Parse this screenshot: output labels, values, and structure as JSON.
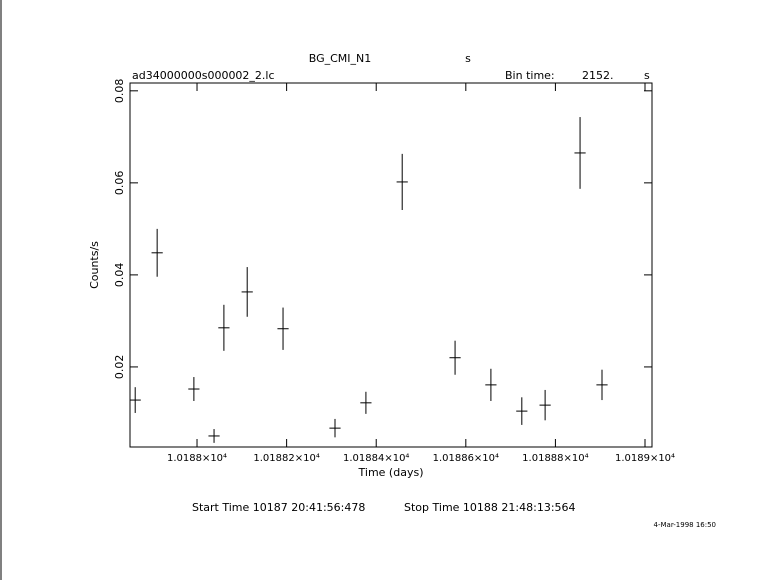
{
  "chart_data": {
    "type": "errorbar",
    "title": "BG_CMI_N1",
    "title_unit": "s",
    "subtitle": "ad34000000s000002_2.lc",
    "bin_label": "Bin time:",
    "bin_value": "2152.",
    "bin_unit": "s",
    "x_label": "Time (days)",
    "y_label": "Counts/s",
    "start_time": "Start Time 10187 20:41:56:478",
    "stop_time": "Stop Time 10188 21:48:13:564",
    "date_stamp": "4-Mar-1998 16:50",
    "xlim": [
      10187.8504,
      10189.0156
    ],
    "ylim": [
      0.0026,
      0.0817
    ],
    "xticks": [
      {
        "value": 10188,
        "label": "1.0188×10⁴"
      },
      {
        "value": 10188.2,
        "label": "1.01882×10⁴"
      },
      {
        "value": 10188.4,
        "label": "1.01884×10⁴"
      },
      {
        "value": 10188.6,
        "label": "1.01886×10⁴"
      },
      {
        "value": 10188.8,
        "label": "1.01888×10⁴"
      },
      {
        "value": 10189,
        "label": "1.0189×10⁴"
      }
    ],
    "yticks": [
      0.02,
      0.04,
      0.06,
      0.08
    ],
    "color": "#000000",
    "x": [
      10187.862,
      10187.911,
      10187.993,
      10188.038,
      10188.06,
      10188.112,
      10188.192,
      10188.308,
      10188.377,
      10188.458,
      10188.576,
      10188.656,
      10188.725,
      10188.777,
      10188.855,
      10188.904
    ],
    "values": [
      0.0128,
      0.0448,
      0.0152,
      0.005,
      0.0285,
      0.0363,
      0.0283,
      0.0067,
      0.0122,
      0.0602,
      0.022,
      0.0161,
      0.0104,
      0.0117,
      0.0665,
      0.0161
    ],
    "yerr": [
      0.0028,
      0.0052,
      0.0026,
      0.0015,
      0.005,
      0.0054,
      0.0046,
      0.002,
      0.0024,
      0.0061,
      0.0037,
      0.0035,
      0.003,
      0.0033,
      0.0078,
      0.0033
    ],
    "xerr": [
      0.0125,
      0.0125,
      0.0125,
      0.0125,
      0.0125,
      0.0125,
      0.0125,
      0.0125,
      0.0125,
      0.0125,
      0.0125,
      0.0125,
      0.0125,
      0.0125,
      0.0125,
      0.0125
    ]
  }
}
